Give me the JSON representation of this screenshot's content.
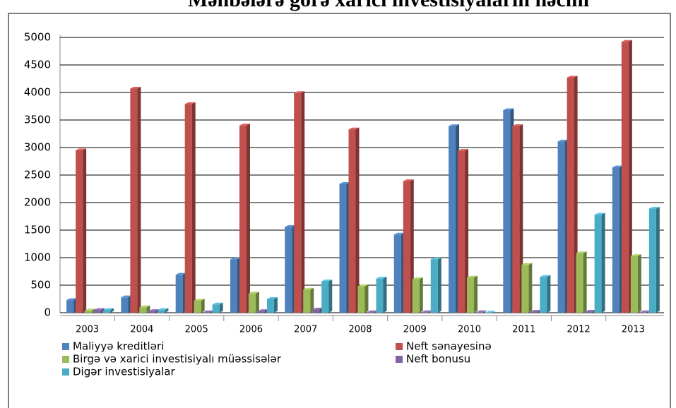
{
  "chart_data": {
    "type": "bar",
    "title": "Mənbələrə görə xarici investisiyaların həcmi",
    "categories": [
      "2003",
      "2004",
      "2005",
      "2006",
      "2007",
      "2008",
      "2009",
      "2010",
      "2011",
      "2012",
      "2013"
    ],
    "series": [
      {
        "name": "Maliyyə kreditləri",
        "color": "#4f81bd",
        "values": [
          230,
          280,
          690,
          970,
          1560,
          2340,
          1420,
          3390,
          3680,
          3110,
          2640
        ]
      },
      {
        "name": "Neft sənayesinə",
        "color": "#c0504d",
        "values": [
          2950,
          4070,
          3790,
          3400,
          3990,
          3330,
          2390,
          2940,
          3390,
          4270,
          4920
        ]
      },
      {
        "name": "Birgə və xarici investisiyalı müəssisələr",
        "color": "#9bbb59",
        "values": [
          40,
          100,
          220,
          350,
          420,
          480,
          610,
          640,
          870,
          1080,
          1030
        ]
      },
      {
        "name": "Neft bonusu",
        "color": "#8064a2",
        "values": [
          50,
          30,
          10,
          30,
          60,
          10,
          10,
          10,
          20,
          20,
          10
        ]
      },
      {
        "name": "Digər investisiyalar",
        "color": "#4bacc6",
        "values": [
          50,
          50,
          150,
          250,
          570,
          620,
          970,
          0,
          650,
          1780,
          1890
        ]
      }
    ],
    "ylim": [
      0,
      5000
    ],
    "yticks": [
      0,
      500,
      1000,
      1500,
      2000,
      2500,
      3000,
      3500,
      4000,
      4500,
      5000
    ],
    "grid": true,
    "legend": "bottom"
  }
}
